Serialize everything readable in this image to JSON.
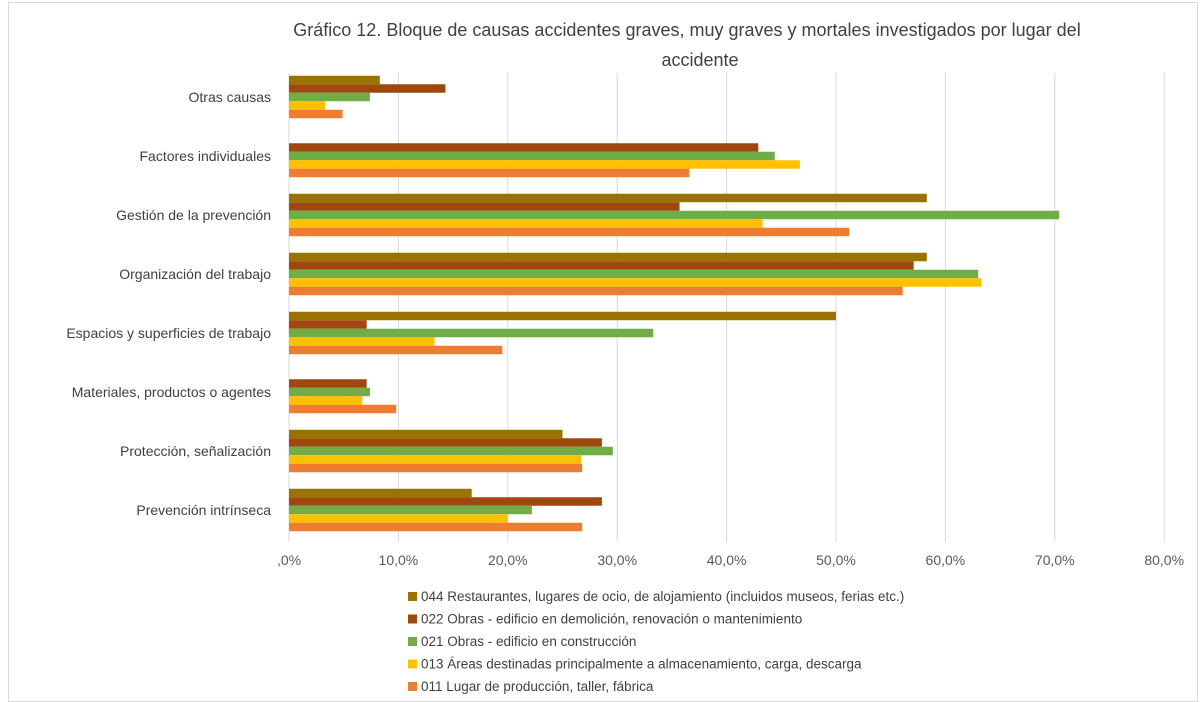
{
  "chart_data": {
    "type": "bar",
    "orientation": "horizontal",
    "title": "Gráfico 12. Bloque de causas accidentes graves, muy graves y mortales investigados por lugar del accidente",
    "title_lines": [
      "Gráfico 12. Bloque de causas accidentes graves, muy graves y mortales investigados por lugar del",
      "accidente"
    ],
    "categories": [
      "Otras causas",
      "Factores individuales",
      "Gestión de la prevención",
      "Organización del trabajo",
      "Espacios y superficies de trabajo",
      "Materiales, productos o agentes",
      "Protección, señalización",
      "Prevención intrínseca"
    ],
    "series": [
      {
        "name": "044 Restaurantes, lugares de ocio, de alojamiento (incluidos museos, ferias etc.)",
        "color": "#997300",
        "values": [
          8.3,
          0.0,
          58.3,
          58.3,
          50.0,
          0.0,
          25.0,
          16.7
        ]
      },
      {
        "name": "022 Obras - edificio en demolición, renovación o mantenimiento",
        "color": "#9e480e",
        "values": [
          14.3,
          42.9,
          35.7,
          57.1,
          7.1,
          7.1,
          28.6,
          28.6
        ]
      },
      {
        "name": "021 Obras - edificio en construcción",
        "color": "#70ad47",
        "values": [
          7.4,
          44.4,
          70.4,
          63.0,
          33.3,
          7.4,
          29.6,
          22.2
        ]
      },
      {
        "name": "013 Áreas destinadas principalmente a almacenamiento, carga, descarga",
        "color": "#ffc000",
        "values": [
          3.3,
          46.7,
          43.3,
          63.3,
          13.3,
          6.7,
          26.7,
          20.0
        ]
      },
      {
        "name": "011 Lugar de producción, taller, fábrica",
        "color": "#ed7d31",
        "values": [
          4.9,
          36.6,
          51.2,
          56.1,
          19.5,
          9.8,
          26.8,
          26.8
        ]
      }
    ],
    "xlim": [
      0,
      80
    ],
    "x_ticks": [
      0,
      10,
      20,
      30,
      40,
      50,
      60,
      70,
      80
    ],
    "x_tick_labels": [
      ",0%",
      "10,0%",
      "20,0%",
      "30,0%",
      "40,0%",
      "50,0%",
      "60,0%",
      "70,0%",
      "80,0%"
    ],
    "xlabel": "",
    "ylabel": "",
    "grid": true,
    "legend_position": "bottom"
  }
}
